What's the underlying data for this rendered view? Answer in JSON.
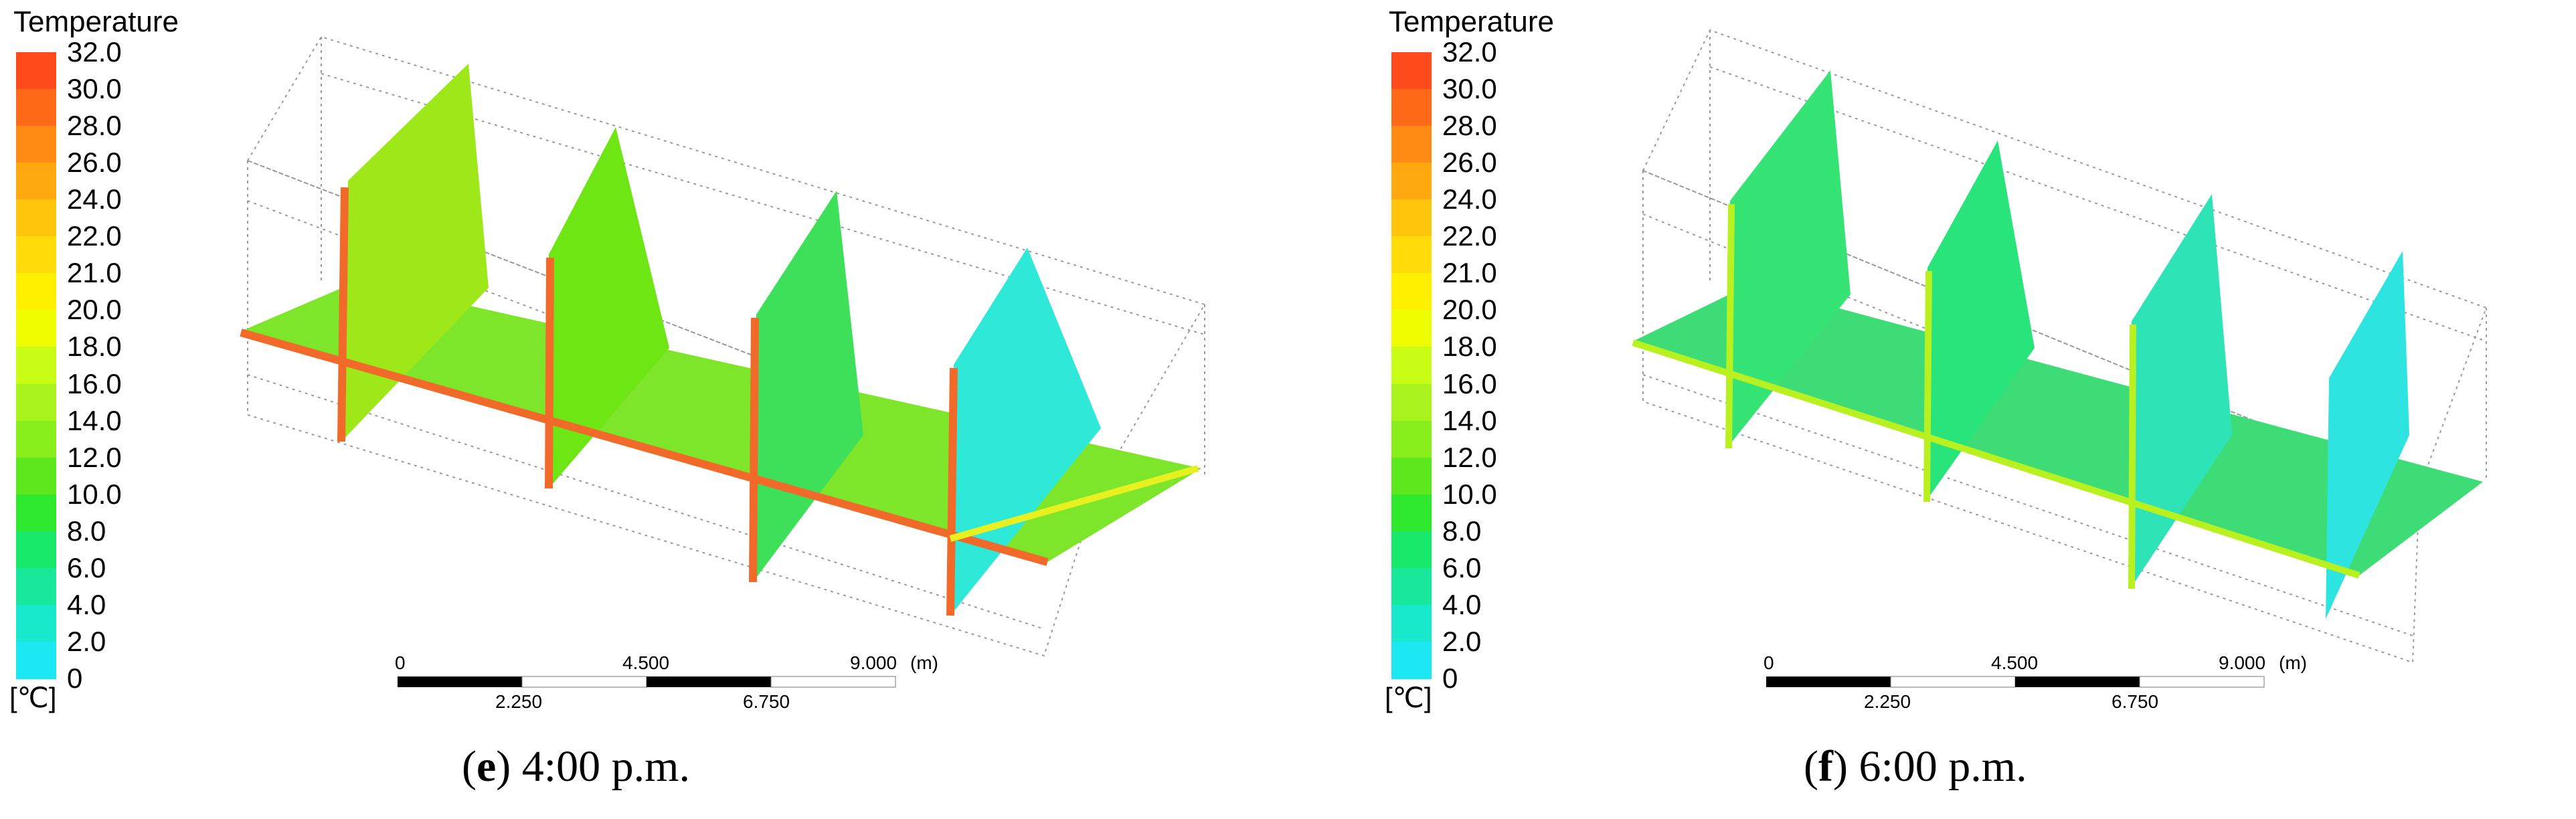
{
  "legend": {
    "title": "Temperature",
    "unit": "[℃]",
    "labels": [
      "32.0",
      "30.0",
      "28.0",
      "26.0",
      "24.0",
      "22.0",
      "21.0",
      "20.0",
      "18.0",
      "16.0",
      "14.0",
      "12.0",
      "10.0",
      "8.0",
      "6.0",
      "4.0",
      "2.0",
      "0"
    ],
    "colors": [
      "#ff4a1c",
      "#ff6a18",
      "#ff8a14",
      "#ffa810",
      "#ffc40c",
      "#ffdc0a",
      "#fff000",
      "#eefe00",
      "#c8fc14",
      "#a8f41c",
      "#88ee1c",
      "#5ce81c",
      "#2ee82e",
      "#18e86a",
      "#18e89c",
      "#18e8cc",
      "#1ce8f4"
    ]
  },
  "scale_bar": {
    "unit": "(m)",
    "top_ticks": [
      "0",
      "4.500",
      "9.000"
    ],
    "bottom_ticks": [
      "2.250",
      "6.750"
    ]
  },
  "panels": [
    {
      "letter": "e",
      "time": "4:00 p.m.",
      "colors": {
        "floor": "#7de62a",
        "wall1": "#9ee81a",
        "wall2": "#6de614",
        "wall3": "#3ee05a",
        "wall4": "#2ee8d8",
        "edge": "#f26a2a"
      }
    },
    {
      "letter": "f",
      "time": "6:00 p.m.",
      "colors": {
        "floor": "#3edc76",
        "wall1": "#36e476",
        "wall2": "#28e47a",
        "wall3": "#2ee4b6",
        "wall4": "#2de4e0",
        "edge": "#b8f020"
      }
    }
  ]
}
